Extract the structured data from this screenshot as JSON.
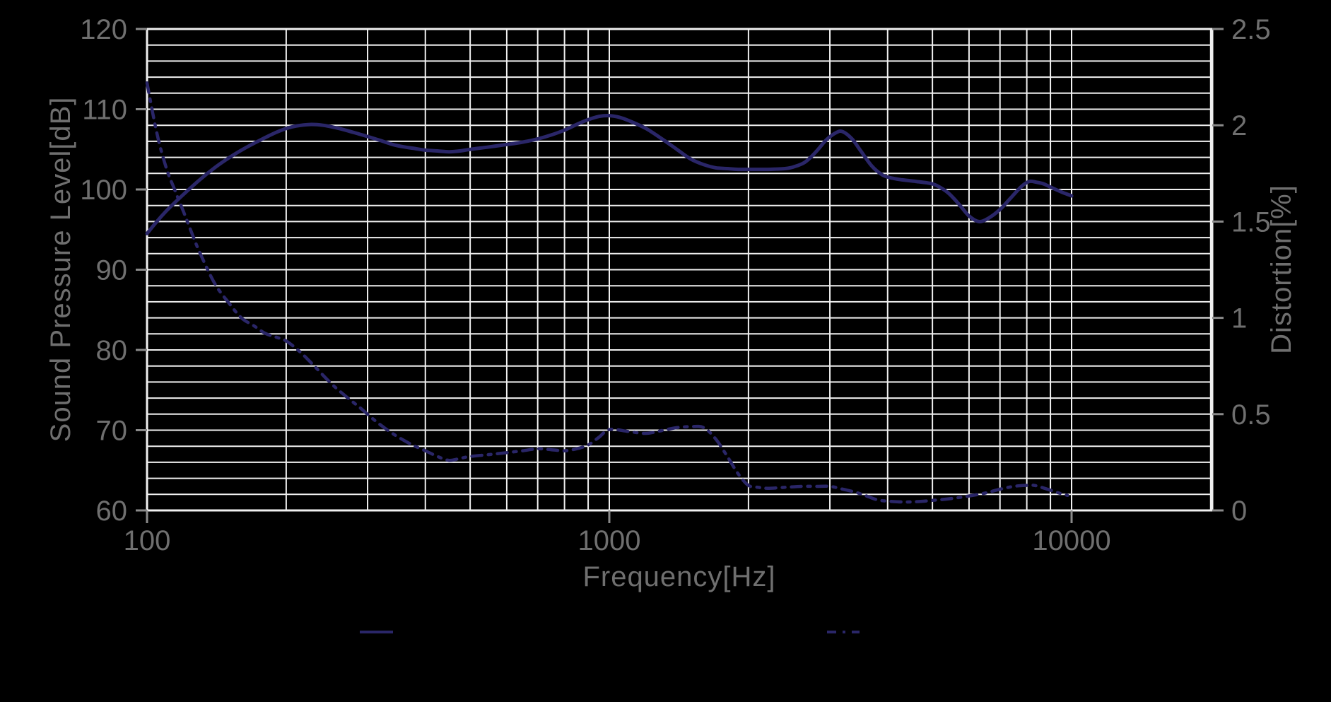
{
  "colors": {
    "background": "#000000",
    "grid": "#f0f0f0",
    "plot_border": "#f0f0f0",
    "tick_mark": "#8a8a8a",
    "label_text": "#6f6f6f",
    "curve": "#2a2668"
  },
  "chart_data": {
    "type": "line",
    "title": "",
    "x_axis": {
      "label": "Frequency[Hz]",
      "scale": "log",
      "min": 100,
      "max": 20000,
      "tick_values": [
        100,
        1000,
        10000
      ],
      "tick_labels": [
        "100",
        "1000",
        "10000"
      ],
      "minor_gridlines": "log decades (100,200,...,900,1000,2000,...,9000,10000,20000)"
    },
    "y_left": {
      "label": "Sound Pressure Level[dB]",
      "min": 60,
      "max": 120,
      "tick_step": 10,
      "gridline_step": 2,
      "tick_values": [
        120,
        110,
        100,
        90,
        80,
        70,
        60
      ],
      "tick_labels": [
        "120",
        "110",
        "100",
        "90",
        "80",
        "70",
        "60"
      ]
    },
    "y_right": {
      "label": "Distortion[%]",
      "min": 0,
      "max": 2.5,
      "tick_step": 0.5,
      "tick_values": [
        2.5,
        2,
        1.5,
        1,
        0.5,
        0
      ],
      "tick_labels": [
        "2.5",
        "2",
        "1.5",
        "1",
        "0.5",
        "0"
      ]
    },
    "grid": "on",
    "legend": {
      "position": "bottom",
      "entries": [
        {
          "series": "Sound Pressure Level",
          "style": "solid"
        },
        {
          "series": "Distortion",
          "style": "dash-dot"
        }
      ]
    },
    "series": [
      {
        "name": "Sound Pressure Level",
        "axis": "left",
        "style": "solid",
        "units": "dB",
        "points": [
          [
            100,
            94.5
          ],
          [
            105,
            96.0
          ],
          [
            110,
            97.3
          ],
          [
            115,
            98.4
          ],
          [
            120,
            99.4
          ],
          [
            130,
            101.2
          ],
          [
            140,
            102.7
          ],
          [
            150,
            103.9
          ],
          [
            160,
            104.9
          ],
          [
            175,
            106.1
          ],
          [
            190,
            107.1
          ],
          [
            200,
            107.6
          ],
          [
            210,
            107.9
          ],
          [
            225,
            108.1
          ],
          [
            240,
            108.0
          ],
          [
            260,
            107.6
          ],
          [
            280,
            107.1
          ],
          [
            300,
            106.6
          ],
          [
            320,
            106.1
          ],
          [
            340,
            105.6
          ],
          [
            360,
            105.3
          ],
          [
            380,
            105.1
          ],
          [
            400,
            104.9
          ],
          [
            425,
            104.8
          ],
          [
            450,
            104.7
          ],
          [
            475,
            104.8
          ],
          [
            500,
            105.0
          ],
          [
            550,
            105.3
          ],
          [
            600,
            105.6
          ],
          [
            650,
            105.9
          ],
          [
            700,
            106.3
          ],
          [
            750,
            106.8
          ],
          [
            800,
            107.4
          ],
          [
            850,
            108.1
          ],
          [
            900,
            108.7
          ],
          [
            950,
            109.1
          ],
          [
            1000,
            109.2
          ],
          [
            1050,
            109.0
          ],
          [
            1100,
            108.6
          ],
          [
            1200,
            107.6
          ],
          [
            1300,
            106.3
          ],
          [
            1400,
            105.0
          ],
          [
            1500,
            103.8
          ],
          [
            1600,
            103.1
          ],
          [
            1700,
            102.7
          ],
          [
            1800,
            102.6
          ],
          [
            1900,
            102.5
          ],
          [
            2000,
            102.5
          ],
          [
            2100,
            102.5
          ],
          [
            2200,
            102.5
          ],
          [
            2300,
            102.55
          ],
          [
            2400,
            102.6
          ],
          [
            2500,
            102.8
          ],
          [
            2650,
            103.4
          ],
          [
            2800,
            104.7
          ],
          [
            2950,
            106.2
          ],
          [
            3100,
            107.1
          ],
          [
            3200,
            107.2
          ],
          [
            3350,
            106.3
          ],
          [
            3500,
            104.8
          ],
          [
            3700,
            102.9
          ],
          [
            3900,
            101.8
          ],
          [
            4100,
            101.4
          ],
          [
            4300,
            101.2
          ],
          [
            4600,
            101.0
          ],
          [
            4900,
            100.8
          ],
          [
            5100,
            100.5
          ],
          [
            5400,
            99.6
          ],
          [
            5700,
            98.2
          ],
          [
            6000,
            96.7
          ],
          [
            6300,
            96.0
          ],
          [
            6600,
            96.4
          ],
          [
            7000,
            97.5
          ],
          [
            7400,
            99.0
          ],
          [
            7800,
            100.4
          ],
          [
            8100,
            101.0
          ],
          [
            8400,
            100.9
          ],
          [
            8700,
            100.7
          ],
          [
            9000,
            100.3
          ],
          [
            9500,
            99.7
          ],
          [
            10000,
            99.2
          ]
        ]
      },
      {
        "name": "Distortion",
        "axis": "right",
        "style": "dash-dot",
        "units": "%",
        "points": [
          [
            100,
            2.22
          ],
          [
            105,
            1.96
          ],
          [
            110,
            1.78
          ],
          [
            115,
            1.66
          ],
          [
            120,
            1.55
          ],
          [
            125,
            1.44
          ],
          [
            130,
            1.34
          ],
          [
            140,
            1.18
          ],
          [
            150,
            1.08
          ],
          [
            160,
            1.0
          ],
          [
            170,
            0.96
          ],
          [
            180,
            0.92
          ],
          [
            190,
            0.9
          ],
          [
            200,
            0.88
          ],
          [
            215,
            0.82
          ],
          [
            230,
            0.75
          ],
          [
            250,
            0.66
          ],
          [
            270,
            0.59
          ],
          [
            290,
            0.53
          ],
          [
            310,
            0.47
          ],
          [
            330,
            0.42
          ],
          [
            350,
            0.38
          ],
          [
            375,
            0.34
          ],
          [
            400,
            0.31
          ],
          [
            425,
            0.28
          ],
          [
            450,
            0.26
          ],
          [
            475,
            0.27
          ],
          [
            500,
            0.28
          ],
          [
            550,
            0.29
          ],
          [
            600,
            0.3
          ],
          [
            650,
            0.31
          ],
          [
            700,
            0.32
          ],
          [
            750,
            0.315
          ],
          [
            800,
            0.31
          ],
          [
            850,
            0.32
          ],
          [
            900,
            0.34
          ],
          [
            950,
            0.38
          ],
          [
            1000,
            0.42
          ],
          [
            1100,
            0.41
          ],
          [
            1200,
            0.4
          ],
          [
            1300,
            0.415
          ],
          [
            1400,
            0.43
          ],
          [
            1500,
            0.435
          ],
          [
            1600,
            0.43
          ],
          [
            1700,
            0.37
          ],
          [
            1800,
            0.28
          ],
          [
            1900,
            0.19
          ],
          [
            2000,
            0.13
          ],
          [
            2100,
            0.12
          ],
          [
            2200,
            0.115
          ],
          [
            2400,
            0.12
          ],
          [
            2600,
            0.125
          ],
          [
            2800,
            0.125
          ],
          [
            3000,
            0.125
          ],
          [
            3200,
            0.11
          ],
          [
            3400,
            0.095
          ],
          [
            3600,
            0.075
          ],
          [
            3800,
            0.055
          ],
          [
            4000,
            0.048
          ],
          [
            4300,
            0.044
          ],
          [
            4600,
            0.045
          ],
          [
            5000,
            0.052
          ],
          [
            5500,
            0.062
          ],
          [
            6000,
            0.075
          ],
          [
            6500,
            0.09
          ],
          [
            7000,
            0.11
          ],
          [
            7500,
            0.125
          ],
          [
            8000,
            0.13
          ],
          [
            8300,
            0.13
          ],
          [
            8600,
            0.12
          ],
          [
            9000,
            0.105
          ],
          [
            9400,
            0.09
          ],
          [
            9800,
            0.078
          ]
        ]
      }
    ]
  }
}
